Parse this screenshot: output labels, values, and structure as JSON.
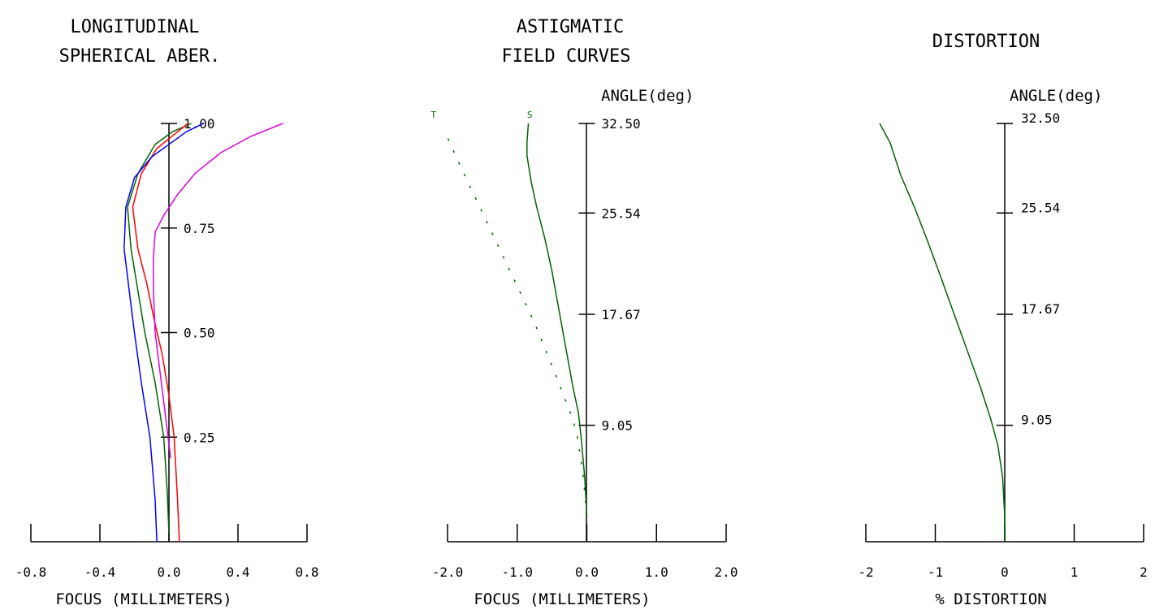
{
  "colors": {
    "axis": "#000000",
    "green": "#006400",
    "red": "#ff0000",
    "blue": "#0000ff",
    "magenta": "#e000e0"
  },
  "chart_data": [
    {
      "type": "line",
      "title": [
        "LONGITUDINAL",
        "SPHERICAL ABER."
      ],
      "xlabel": "FOCUS (MILLIMETERS)",
      "ylabel": "",
      "xlim": [
        -0.8,
        0.8
      ],
      "ylim": [
        0,
        1.0
      ],
      "x_ticks": [
        -0.8,
        -0.4,
        0.0,
        0.4,
        0.8
      ],
      "x_tick_labels": [
        "-0.8",
        "-0.4",
        "0.0",
        "0.4",
        "0.8"
      ],
      "y_ticks": [
        0.25,
        0.5,
        0.75,
        1.0
      ],
      "y_tick_labels": [
        "0.25",
        "0.50",
        "0.75",
        "1.00"
      ],
      "grid": false,
      "series": [
        {
          "color": "#006400",
          "points": [
            [
              0.0,
              0.02
            ],
            [
              -0.01,
              0.12
            ],
            [
              -0.03,
              0.25
            ],
            [
              -0.08,
              0.38
            ],
            [
              -0.14,
              0.5
            ],
            [
              -0.18,
              0.6
            ],
            [
              -0.22,
              0.7
            ],
            [
              -0.24,
              0.8
            ],
            [
              -0.18,
              0.88
            ],
            [
              -0.08,
              0.95
            ],
            [
              0.02,
              0.98
            ],
            [
              0.13,
              1.0
            ]
          ]
        },
        {
          "color": "#ff0000",
          "points": [
            [
              0.06,
              0.0
            ],
            [
              0.05,
              0.1
            ],
            [
              0.03,
              0.25
            ],
            [
              0.0,
              0.35
            ],
            [
              -0.04,
              0.45
            ],
            [
              -0.08,
              0.52
            ],
            [
              -0.13,
              0.62
            ],
            [
              -0.18,
              0.7
            ],
            [
              -0.21,
              0.8
            ],
            [
              -0.16,
              0.88
            ],
            [
              -0.07,
              0.94
            ],
            [
              0.02,
              0.97
            ],
            [
              0.11,
              1.0
            ]
          ]
        },
        {
          "color": "#0000ff",
          "points": [
            [
              -0.07,
              0.0
            ],
            [
              -0.08,
              0.1
            ],
            [
              -0.11,
              0.25
            ],
            [
              -0.16,
              0.38
            ],
            [
              -0.2,
              0.5
            ],
            [
              -0.23,
              0.6
            ],
            [
              -0.26,
              0.7
            ],
            [
              -0.25,
              0.8
            ],
            [
              -0.2,
              0.87
            ],
            [
              -0.1,
              0.92
            ],
            [
              0.0,
              0.95
            ],
            [
              0.1,
              0.98
            ],
            [
              0.2,
              1.0
            ]
          ]
        },
        {
          "color": "#e000e0",
          "points": [
            [
              0.01,
              0.2
            ],
            [
              -0.02,
              0.3
            ],
            [
              -0.05,
              0.4
            ],
            [
              -0.08,
              0.5
            ],
            [
              -0.09,
              0.6
            ],
            [
              -0.09,
              0.68
            ],
            [
              -0.08,
              0.74
            ],
            [
              -0.03,
              0.78
            ],
            [
              0.05,
              0.83
            ],
            [
              0.15,
              0.88
            ],
            [
              0.3,
              0.93
            ],
            [
              0.48,
              0.97
            ],
            [
              0.66,
              1.0
            ]
          ]
        }
      ]
    },
    {
      "type": "line",
      "title": [
        "ASTIGMATIC",
        "FIELD CURVES"
      ],
      "xlabel": "FOCUS (MILLIMETERS)",
      "ylabel": "ANGLE(deg)",
      "xlim": [
        -2.0,
        2.0
      ],
      "ylim": [
        0,
        32.5
      ],
      "x_ticks": [
        -2.0,
        -1.0,
        0.0,
        1.0,
        2.0
      ],
      "x_tick_labels": [
        "-2.0",
        "-1.0",
        "0.0",
        "1.0",
        "2.0"
      ],
      "y_ticks": [
        9.05,
        17.67,
        25.54,
        32.5
      ],
      "y_tick_labels": [
        "9.05",
        "17.67",
        "25.54",
        "32.50"
      ],
      "grid": false,
      "curve_markers": [
        {
          "label": "T",
          "x": -2.2,
          "y": 33.2
        },
        {
          "label": "S",
          "x": -0.82,
          "y": 33.2
        }
      ],
      "series": [
        {
          "label": "S",
          "color": "#006400",
          "dashed": false,
          "points": [
            [
              0.0,
              2.0
            ],
            [
              -0.03,
              5.0
            ],
            [
              -0.08,
              8.0
            ],
            [
              -0.12,
              10.0
            ],
            [
              -0.2,
              12.0
            ],
            [
              -0.3,
              15.0
            ],
            [
              -0.4,
              18.0
            ],
            [
              -0.5,
              21.0
            ],
            [
              -0.6,
              23.5
            ],
            [
              -0.72,
              26.0
            ],
            [
              -0.8,
              28.0
            ],
            [
              -0.86,
              30.0
            ],
            [
              -0.86,
              31.0
            ],
            [
              -0.84,
              32.5
            ]
          ]
        },
        {
          "label": "T",
          "color": "#006400",
          "dashed": true,
          "points": [
            [
              0.0,
              2.0
            ],
            [
              -0.05,
              5.0
            ],
            [
              -0.13,
              8.0
            ],
            [
              -0.2,
              9.5
            ],
            [
              -0.45,
              13.0
            ],
            [
              -0.75,
              17.0
            ],
            [
              -1.1,
              21.0
            ],
            [
              -1.45,
              25.0
            ],
            [
              -1.8,
              29.0
            ],
            [
              -2.05,
              32.0
            ]
          ]
        }
      ]
    },
    {
      "type": "line",
      "title": [
        "DISTORTION"
      ],
      "xlabel": "% DISTORTION",
      "ylabel": "ANGLE(deg)",
      "xlim": [
        -2,
        2
      ],
      "ylim": [
        0,
        32.5
      ],
      "x_ticks": [
        -2,
        -1,
        0,
        1,
        2
      ],
      "x_tick_labels": [
        "-2",
        "-1",
        "0",
        "1",
        "2"
      ],
      "y_ticks": [
        9.05,
        17.67,
        25.54,
        32.5
      ],
      "y_tick_labels": [
        "9.05",
        "17.67",
        "25.54",
        "32.50"
      ],
      "grid": false,
      "series": [
        {
          "color": "#006400",
          "points": [
            [
              0.0,
              0.0
            ],
            [
              0.0,
              2.0
            ],
            [
              -0.03,
              5.0
            ],
            [
              -0.1,
              7.5
            ],
            [
              -0.2,
              9.5
            ],
            [
              -0.35,
              12.0
            ],
            [
              -0.55,
              15.0
            ],
            [
              -0.75,
              18.0
            ],
            [
              -0.95,
              21.0
            ],
            [
              -1.12,
              23.5
            ],
            [
              -1.3,
              26.0
            ],
            [
              -1.5,
              28.5
            ],
            [
              -1.65,
              31.0
            ],
            [
              -1.8,
              32.5
            ]
          ]
        }
      ]
    }
  ]
}
